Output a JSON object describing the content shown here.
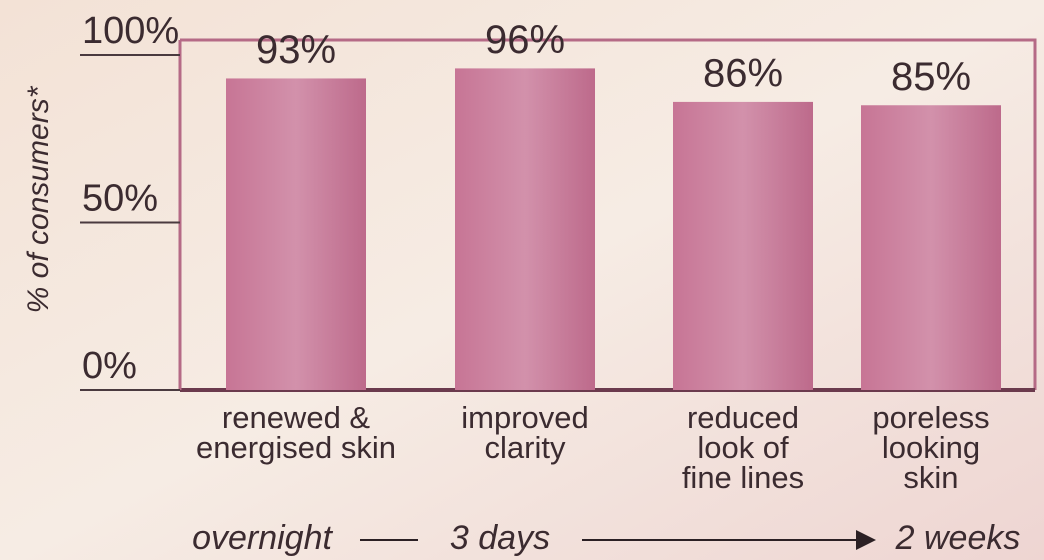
{
  "chart_data": {
    "type": "bar",
    "y_label": "% of consumers*",
    "categories": [
      [
        "renewed &",
        "energised skin"
      ],
      [
        "improved",
        "clarity"
      ],
      [
        "reduced",
        "look of",
        "fine lines"
      ],
      [
        "poreless",
        "looking",
        "skin"
      ]
    ],
    "values": [
      93,
      96,
      86,
      85
    ],
    "value_labels": [
      "93%",
      "96%",
      "86%",
      "85%"
    ],
    "color": "#c3708f",
    "ylim": [
      0,
      100
    ],
    "yticks": [
      {
        "value": 0,
        "label": "0%"
      },
      {
        "value": 50,
        "label": "50%"
      },
      {
        "value": 100,
        "label": "100%"
      }
    ],
    "timeline": [
      "overnight",
      "3 days",
      "2 weeks"
    ]
  }
}
